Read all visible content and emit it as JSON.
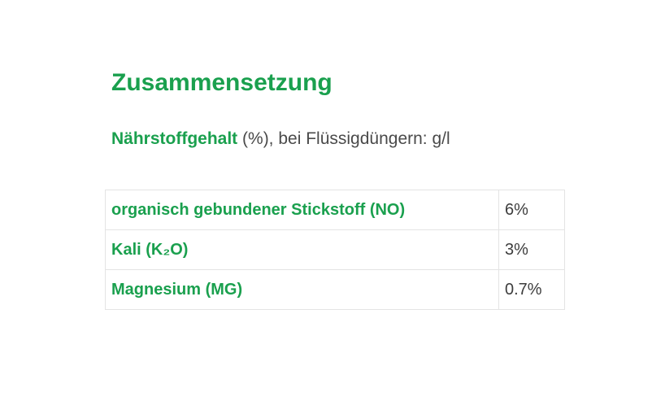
{
  "section": {
    "title": "Zusammensetzung",
    "subtitle_lead": "Nährstoffgehalt",
    "subtitle_rest": " (%), bei Flüssigdüngern: g/l"
  },
  "table": {
    "rows": [
      {
        "label": "organisch gebundener Stickstoff (NO)",
        "value": "6%"
      },
      {
        "label": "Kali (K₂O)",
        "value": "3%"
      },
      {
        "label": "Magnesium (MG)",
        "value": "0.7%"
      }
    ]
  },
  "colors": {
    "accent_green": "#1aa04e",
    "text_dark": "#3d3d3d",
    "table_border": "#e4e4e4",
    "background": "#ffffff"
  }
}
